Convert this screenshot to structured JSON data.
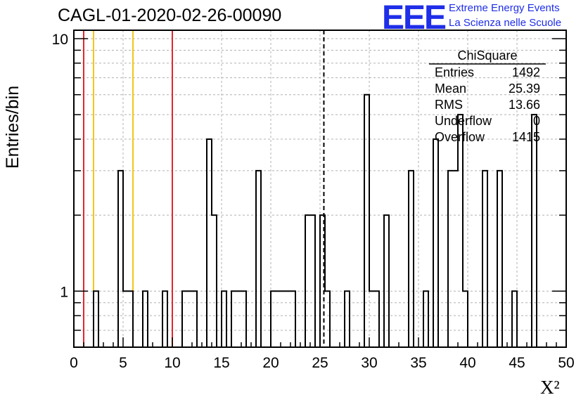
{
  "header": {
    "title": "CAGL-01-2020-02-26-00090",
    "logo_mark": "EEE",
    "logo_line1": "Extreme Energy Events",
    "logo_line2": "La Scienza nelle Scuole"
  },
  "stats_box": {
    "title": "ChiSquare",
    "rows": [
      {
        "label": "Entries",
        "value": "1492"
      },
      {
        "label": "Mean",
        "value": "25.39"
      },
      {
        "label": "RMS",
        "value": "13.66"
      },
      {
        "label": "Underflow",
        "value": "0"
      },
      {
        "label": "Overflow",
        "value": "1415"
      }
    ]
  },
  "chart_data": {
    "type": "histogram",
    "title": "CAGL-01-2020-02-26-00090",
    "xlabel": "X²",
    "ylabel": "Entries/bin",
    "xlim": [
      0,
      50
    ],
    "ylim": [
      0.6,
      10.8
    ],
    "log_y": true,
    "grid": true,
    "bin_width": 0.5,
    "x_ticks": [
      "0",
      "5",
      "10",
      "15",
      "20",
      "25",
      "30",
      "35",
      "40",
      "45",
      "50"
    ],
    "y_ticks": [
      "1",
      "10"
    ],
    "bins": [
      {
        "x0": 2.0,
        "x1": 2.5,
        "y": 1
      },
      {
        "x0": 4.5,
        "x1": 5.0,
        "y": 3
      },
      {
        "x0": 5.0,
        "x1": 6.0,
        "y": 1
      },
      {
        "x0": 7.0,
        "x1": 7.5,
        "y": 1
      },
      {
        "x0": 9.0,
        "x1": 9.5,
        "y": 1
      },
      {
        "x0": 11.0,
        "x1": 12.5,
        "y": 1
      },
      {
        "x0": 13.5,
        "x1": 14.0,
        "y": 4
      },
      {
        "x0": 14.0,
        "x1": 14.5,
        "y": 2
      },
      {
        "x0": 15.0,
        "x1": 15.5,
        "y": 1
      },
      {
        "x0": 16.0,
        "x1": 17.5,
        "y": 1
      },
      {
        "x0": 18.5,
        "x1": 19.0,
        "y": 3
      },
      {
        "x0": 20.0,
        "x1": 22.5,
        "y": 1
      },
      {
        "x0": 23.5,
        "x1": 24.5,
        "y": 2
      },
      {
        "x0": 25.0,
        "x1": 25.5,
        "y": 2
      },
      {
        "x0": 25.5,
        "x1": 26.0,
        "y": 1
      },
      {
        "x0": 27.5,
        "x1": 28.0,
        "y": 1
      },
      {
        "x0": 29.5,
        "x1": 30.0,
        "y": 6
      },
      {
        "x0": 30.0,
        "x1": 31.0,
        "y": 1
      },
      {
        "x0": 31.5,
        "x1": 32.0,
        "y": 2
      },
      {
        "x0": 34.0,
        "x1": 34.5,
        "y": 3
      },
      {
        "x0": 35.5,
        "x1": 36.0,
        "y": 1
      },
      {
        "x0": 36.5,
        "x1": 37.0,
        "y": 4
      },
      {
        "x0": 38.0,
        "x1": 39.0,
        "y": 3
      },
      {
        "x0": 39.0,
        "x1": 39.5,
        "y": 5
      },
      {
        "x0": 39.5,
        "x1": 40.0,
        "y": 1
      },
      {
        "x0": 41.5,
        "x1": 42.0,
        "y": 3
      },
      {
        "x0": 43.0,
        "x1": 43.5,
        "y": 3
      },
      {
        "x0": 44.5,
        "x1": 45.0,
        "y": 1
      },
      {
        "x0": 46.5,
        "x1": 47.0,
        "y": 5
      }
    ],
    "vlines": [
      {
        "x": 1.0,
        "color": "#e3262b",
        "style": "solid"
      },
      {
        "x": 2.0,
        "color": "#f5c518",
        "style": "solid"
      },
      {
        "x": 6.0,
        "color": "#f5c518",
        "style": "solid"
      },
      {
        "x": 10.0,
        "color": "#e3262b",
        "style": "solid"
      },
      {
        "x": 25.39,
        "color": "#000000",
        "style": "dashed"
      }
    ],
    "colors": {
      "line": "#000000",
      "grid": "#b0b0b0",
      "logo": "#1f2ee8"
    }
  }
}
